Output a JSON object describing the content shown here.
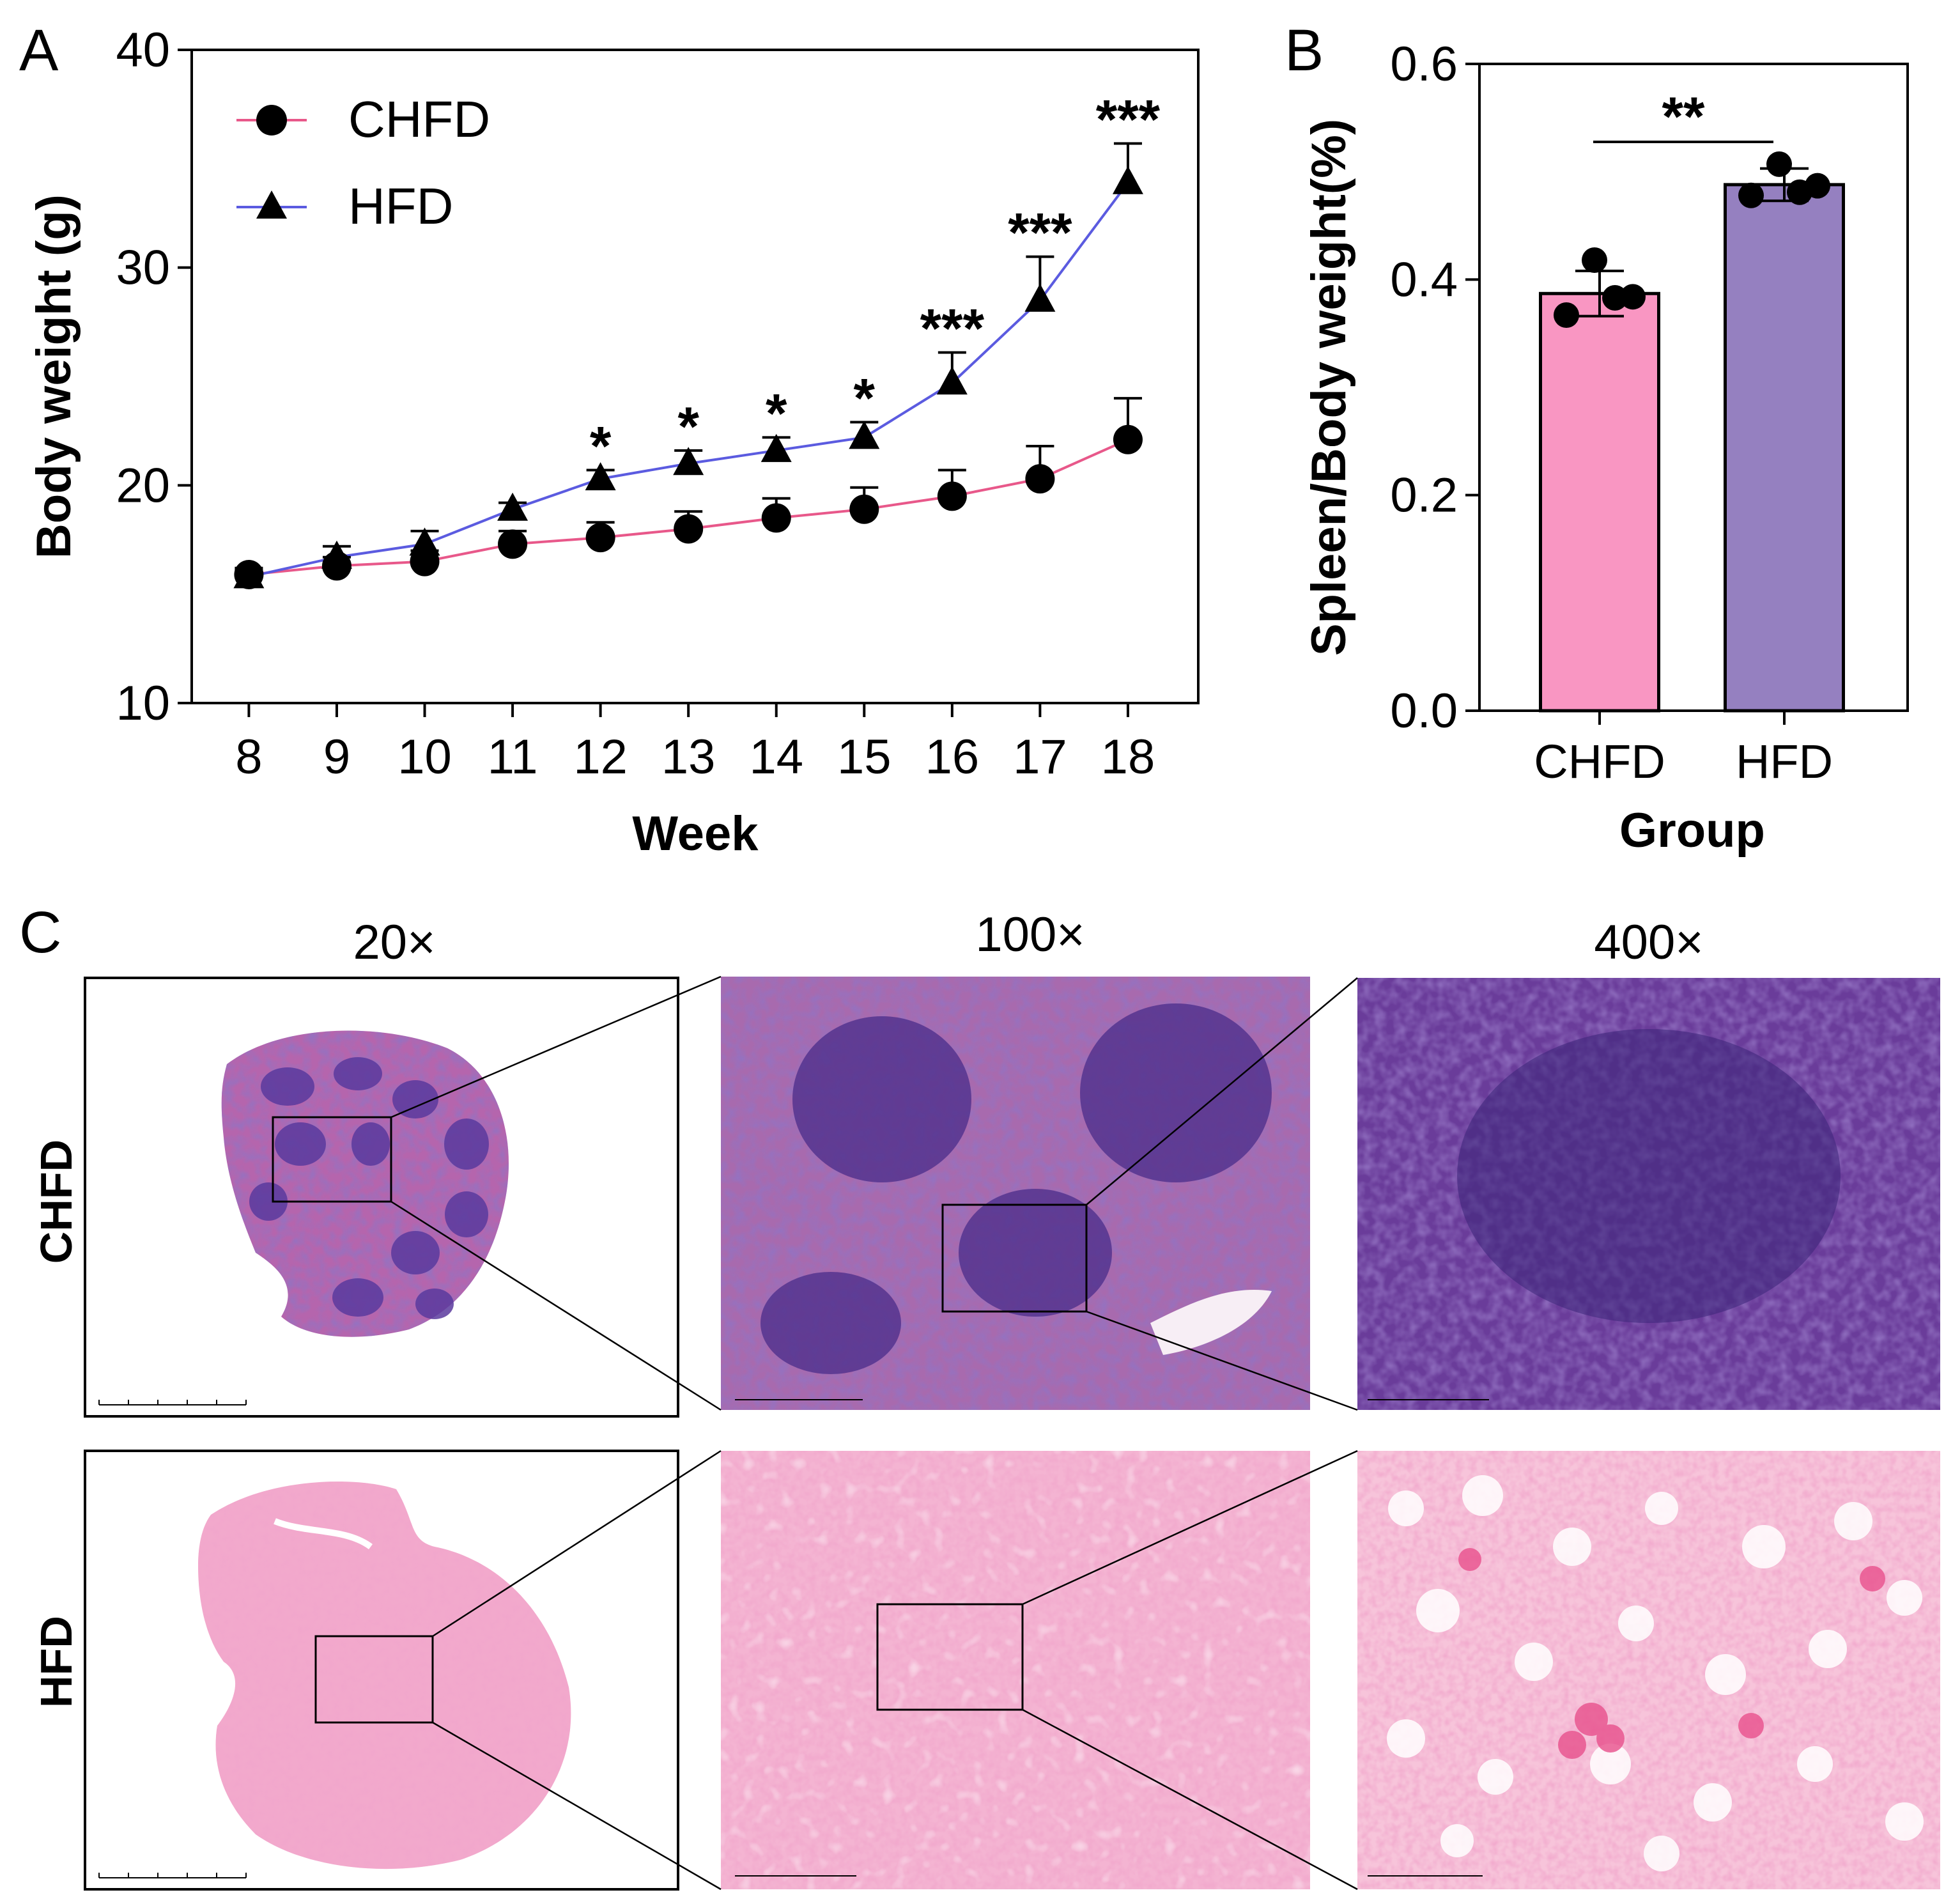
{
  "panels": {
    "a_letter": "A",
    "b_letter": "B",
    "c_letter": "C"
  },
  "colors": {
    "chfd_line": "#e8588a",
    "hfd_line": "#5b5be0",
    "chfd_bar": "#f996c2",
    "hfd_bar": "#9580c0",
    "tissue_chfd_bg": "#a8589f",
    "tissue_chfd_dense": "#4a2c8a",
    "tissue_hfd_bg": "#f2a9cc",
    "tissue_hfd_cell": "#e0619a"
  },
  "chart_data": [
    {
      "type": "line",
      "panel": "A",
      "xlabel": "Week",
      "ylabel": "Body weight (g)",
      "x": [
        8,
        9,
        10,
        11,
        12,
        13,
        14,
        15,
        16,
        17,
        18
      ],
      "x_ticks": [
        "8",
        "9",
        "10",
        "11",
        "12",
        "13",
        "14",
        "15",
        "16",
        "17",
        "18"
      ],
      "ylim": [
        10,
        40
      ],
      "y_ticks": [
        "10",
        "20",
        "30",
        "40"
      ],
      "legend_position": "top-left",
      "series": [
        {
          "name": "CHFD",
          "marker": "circle",
          "values": [
            15.9,
            16.3,
            16.5,
            17.3,
            17.6,
            18.0,
            18.5,
            18.9,
            19.5,
            20.3,
            22.1
          ],
          "errors": [
            0.3,
            0.4,
            0.5,
            0.6,
            0.7,
            0.8,
            0.9,
            1.0,
            1.2,
            1.5,
            1.9
          ]
        },
        {
          "name": "HFD",
          "marker": "triangle",
          "values": [
            15.8,
            16.7,
            17.3,
            18.9,
            20.3,
            21.0,
            21.6,
            22.2,
            24.7,
            28.5,
            33.9
          ],
          "errors": [
            0.3,
            0.5,
            0.6,
            0.3,
            0.4,
            0.6,
            0.6,
            0.7,
            1.4,
            2.0,
            1.8
          ]
        }
      ],
      "annotations": [
        {
          "x": 12,
          "text": "*"
        },
        {
          "x": 13,
          "text": "*"
        },
        {
          "x": 14,
          "text": "*"
        },
        {
          "x": 15,
          "text": "*"
        },
        {
          "x": 16,
          "text": "***"
        },
        {
          "x": 17,
          "text": "***"
        },
        {
          "x": 18,
          "text": "***"
        }
      ]
    },
    {
      "type": "bar",
      "panel": "B",
      "xlabel": "Group",
      "ylabel": "Spleen/Body weight(%)",
      "categories": [
        "CHFD",
        "HFD"
      ],
      "values": [
        0.387,
        0.488
      ],
      "errors": [
        0.021,
        0.015
      ],
      "ylim": [
        0,
        0.6
      ],
      "y_ticks": [
        "0.0",
        "0.2",
        "0.4",
        "0.6"
      ],
      "points": [
        [
          0.367,
          0.418,
          0.383,
          0.384
        ],
        [
          0.478,
          0.507,
          0.481,
          0.487
        ]
      ],
      "significance": "**"
    }
  ],
  "histology": {
    "column_headers": [
      "20×",
      "100×",
      "400×"
    ],
    "row_labels": [
      "CHFD",
      "HFD"
    ]
  }
}
